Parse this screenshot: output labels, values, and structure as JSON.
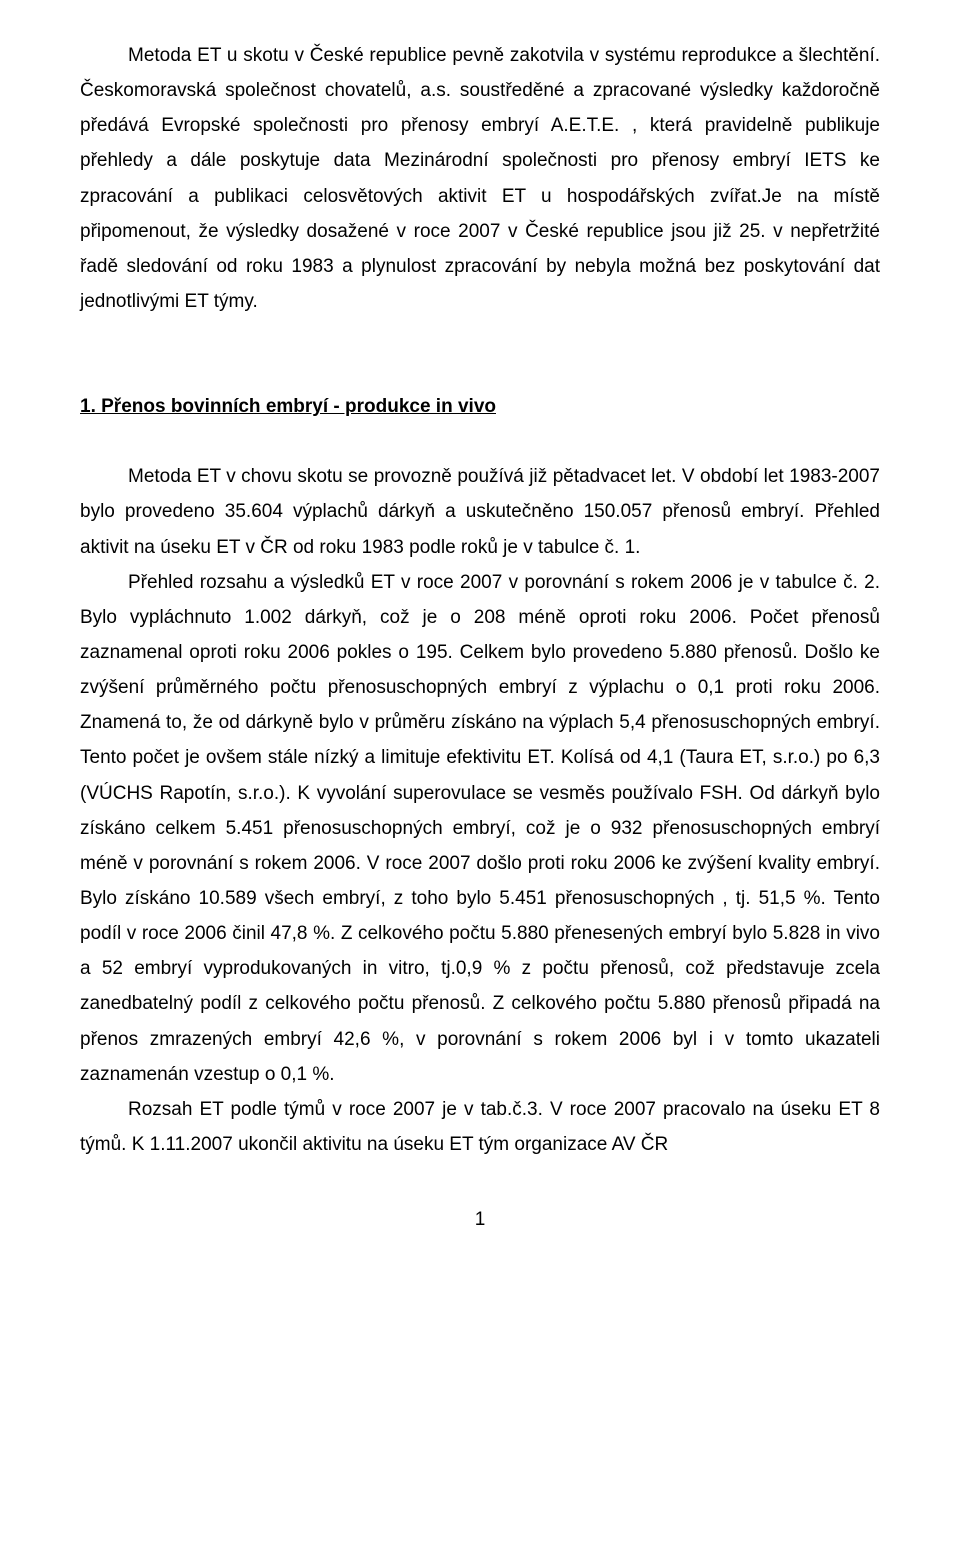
{
  "document": {
    "font_family": "Arial",
    "font_size_pt": 14,
    "text_color": "#000000",
    "background_color": "#ffffff",
    "paragraphs": {
      "p1": "Metoda ET u skotu v České republice pevně zakotvila v systému reprodukce a šlechtění. Českomoravská společnost chovatelů, a.s. soustředěné a zpracované výsledky každoročně předává Evropské společnosti pro přenosy embryí A.E.T.E. , která pravidelně publikuje přehledy a dále poskytuje data Mezinárodní společnosti pro přenosy embryí IETS ke zpracování a publikaci celosvětových aktivit ET u hospodářských zvířat.Je na místě připomenout, že výsledky dosažené v roce 2007 v České republice jsou již 25. v nepřetržité řadě sledování od roku 1983 a plynulost zpracování by nebyla možná bez poskytování dat jednotlivými ET týmy.",
      "section1_title": "1. Přenos bovinních embryí  - produkce in vivo",
      "p2": "Metoda ET v chovu skotu se provozně používá již pětadvacet let. V období let 1983-2007 bylo provedeno 35.604 výplachů dárkyň a uskutečněno 150.057 přenosů embryí. Přehled aktivit na úseku ET v ČR od roku 1983 podle roků je v tabulce č. 1.",
      "p3": "Přehled rozsahu a výsledků ET v roce 2007 v porovnání s rokem 2006 je v tabulce č. 2. Bylo vypláchnuto 1.002 dárkyň, což je o 208 méně oproti roku 2006. Počet přenosů zaznamenal oproti roku 2006 pokles o 195. Celkem bylo provedeno 5.880 přenosů. Došlo ke zvýšení průměrného počtu přenosuschopných embryí z výplachu o 0,1 proti roku 2006. Znamená to, že od dárkyně bylo v průměru získáno na výplach 5,4 přenosuschopných embryí. Tento počet je ovšem stále nízký a limituje efektivitu ET. Kolísá od 4,1 (Taura ET, s.r.o.) po 6,3 (VÚCHS Rapotín, s.r.o.). K vyvolání superovulace  se vesměs používalo FSH. Od dárkyň bylo získáno celkem 5.451 přenosuschopných embryí, což je o 932 přenosuschopných embryí méně v porovnání s rokem 2006. V roce 2007 došlo proti roku 2006 ke zvýšení kvality embryí. Bylo získáno 10.589 všech embryí, z toho bylo 5.451 přenosuschopných , tj. 51,5 %. Tento podíl v roce 2006 činil 47,8 %. Z celkového počtu 5.880 přenesených embryí bylo 5.828 in vivo a 52 embryí vyprodukovaných in vitro, tj.0,9 % z počtu přenosů, což představuje zcela zanedbatelný podíl z celkového počtu přenosů. Z celkového počtu 5.880 přenosů připadá na přenos zmrazených embryí 42,6 %, v porovnání s rokem 2006 byl i v tomto ukazateli zaznamenán vzestup o 0,1 %.",
      "p4": "Rozsah ET podle týmů v roce 2007 je v tab.č.3. V roce 2007 pracovalo na úseku ET 8 týmů. K 1.11.2007 ukončil aktivitu na úseku ET tým organizace AV ČR"
    },
    "page_number": "1"
  }
}
